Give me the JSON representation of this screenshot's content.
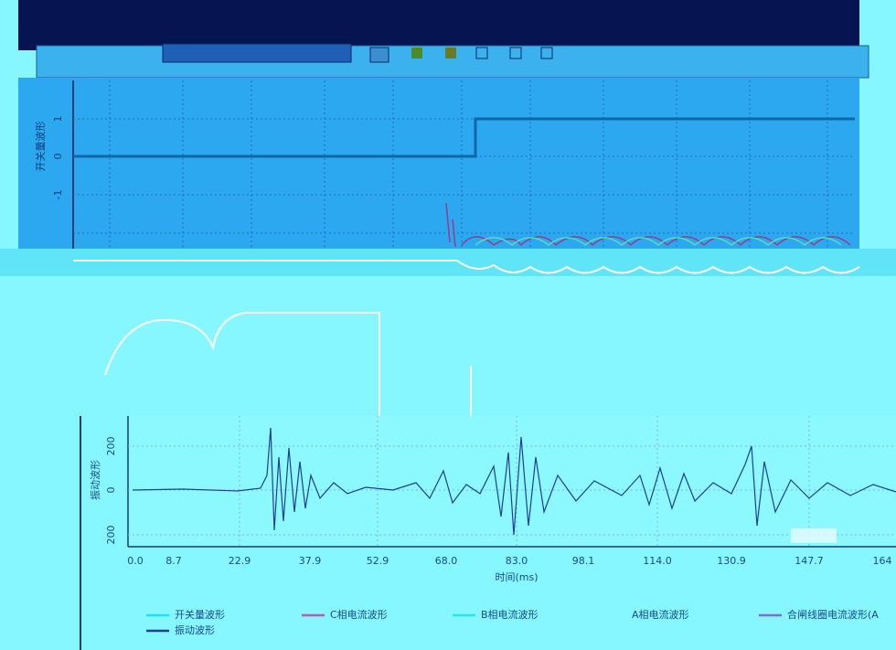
{
  "panels": [
    {
      "title": "开关量波形",
      "yticks": [
        "1",
        "0",
        "-1"
      ]
    },
    {
      "title": "振动波形",
      "yticks": [
        "200",
        "0",
        "200"
      ]
    }
  ],
  "x_axis": {
    "ticks": [
      "0.0",
      "8.7",
      "22.9",
      "37.9",
      "52.9",
      "68.0",
      "83.0",
      "98.1",
      "114.0",
      "130.9",
      "147.7",
      "164"
    ],
    "label": "时间(ms)"
  },
  "legend": [
    "开关量波形",
    "C相电流波形",
    "B相电流波形",
    "A相电流波形",
    "合闸线圈电流波形(A",
    "振动波形"
  ]
}
